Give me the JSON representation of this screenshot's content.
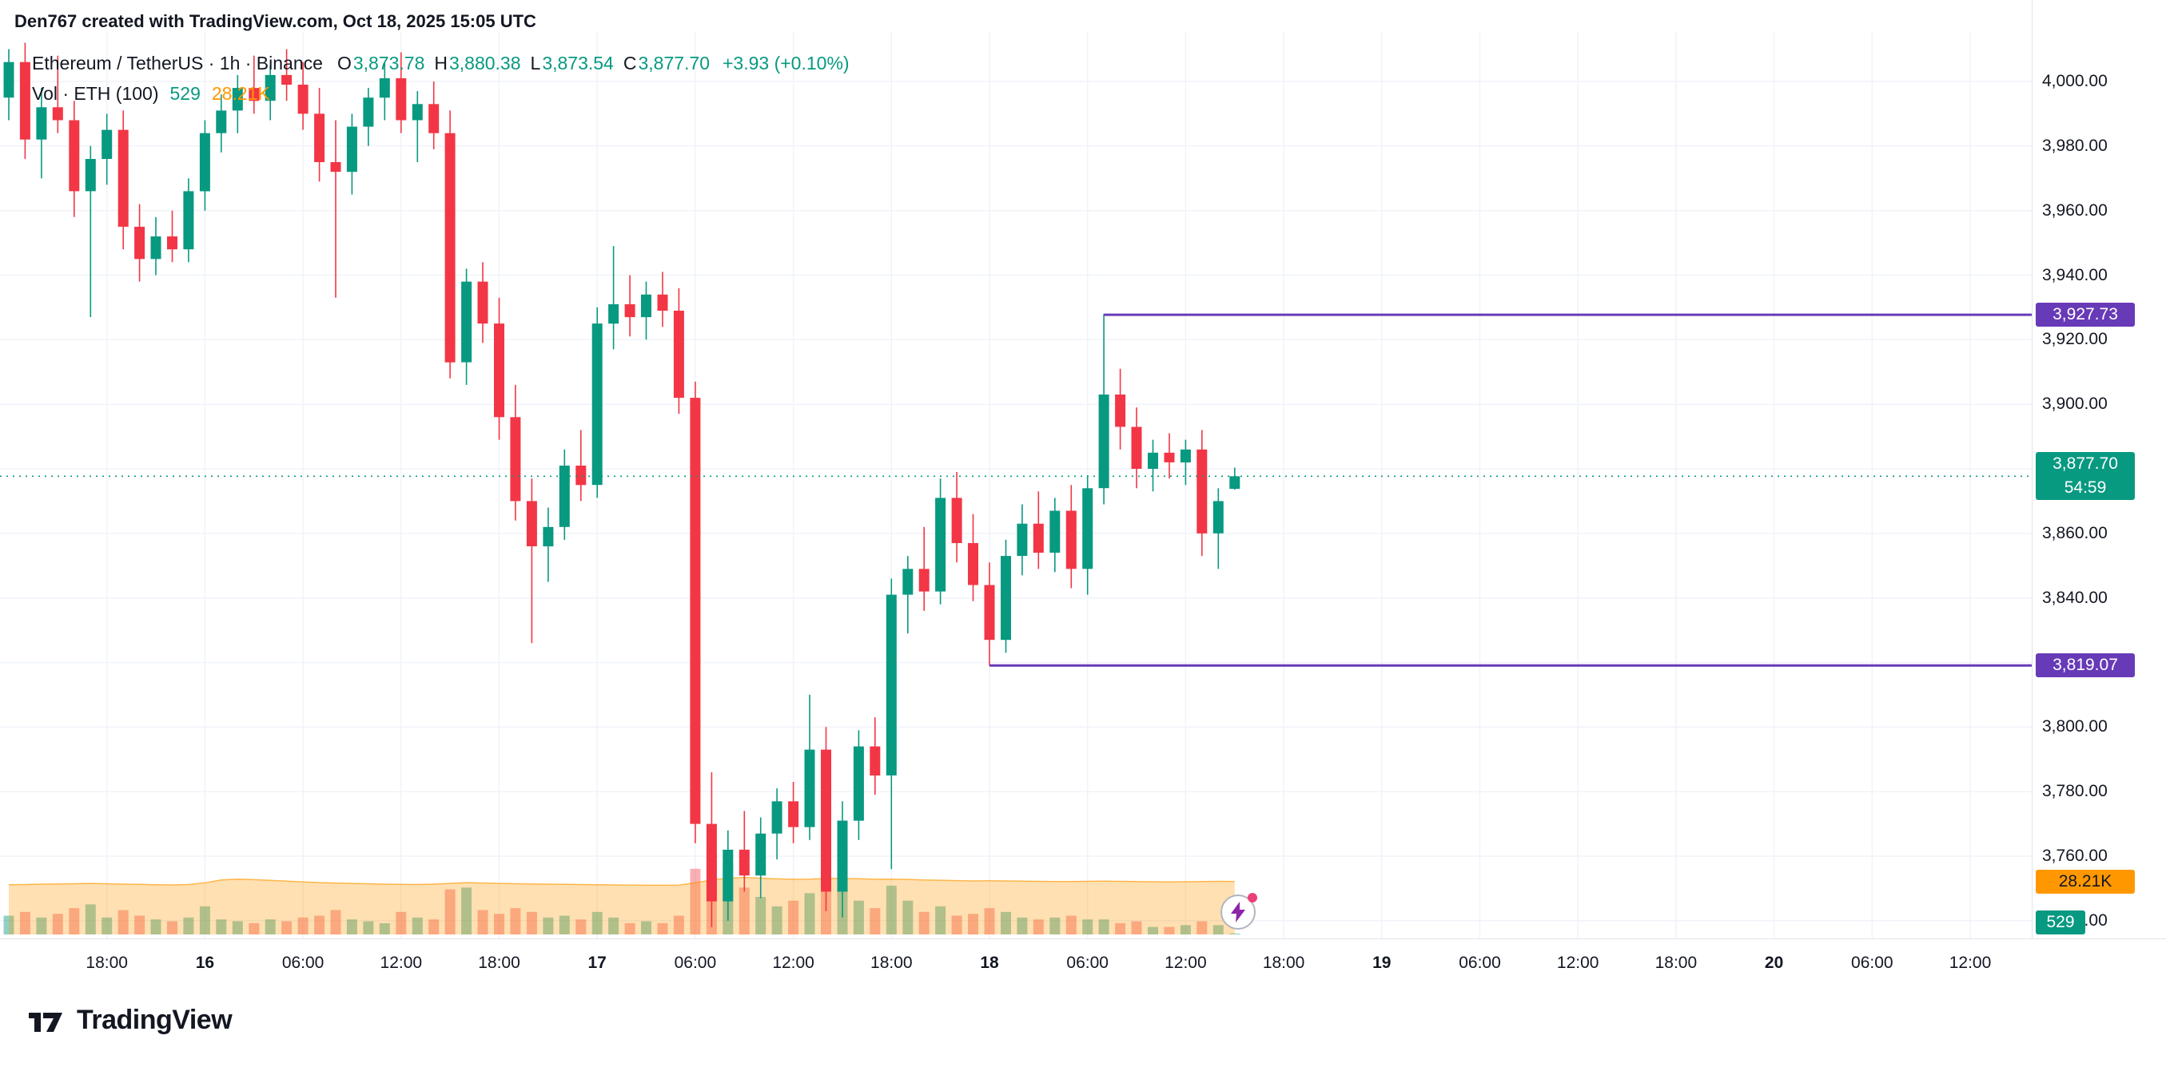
{
  "attribution": "Den767 created with TradingView.com, Oct 18, 2025 15:05 UTC",
  "legend": {
    "title": "Ethereum / TetherUS · 1h · Binance",
    "ohlc": [
      {
        "label": "O",
        "value": "3,873.78"
      },
      {
        "label": "H",
        "value": "3,880.38"
      },
      {
        "label": "L",
        "value": "3,873.54"
      },
      {
        "label": "C",
        "value": "3,877.70"
      }
    ],
    "change": "+3.93 (+0.10%)",
    "vol_title": "Vol · ETH (100)",
    "vol_value": "529",
    "vol_ma": "28.21K"
  },
  "axis": {
    "price_labels": [
      {
        "label": "4,000.00",
        "price": 4000
      },
      {
        "label": "3,980.00",
        "price": 3980
      },
      {
        "label": "3,960.00",
        "price": 3960
      },
      {
        "label": "3,940.00",
        "price": 3940
      },
      {
        "label": "3,920.00",
        "price": 3920
      },
      {
        "label": "3,900.00",
        "price": 3900
      },
      {
        "label": "3,880.00",
        "price": 3880
      },
      {
        "label": "3,860.00",
        "price": 3860
      },
      {
        "label": "3,840.00",
        "price": 3840
      },
      {
        "label": "3,820.00",
        "price": 3820
      },
      {
        "label": "3,800.00",
        "price": 3800
      },
      {
        "label": "3,780.00",
        "price": 3780
      },
      {
        "label": "3,760.00",
        "price": 3760
      },
      {
        "label": "3,740.00",
        "price": 3740
      }
    ],
    "time_labels": [
      {
        "label": "18:00",
        "i": 6,
        "bold": false
      },
      {
        "label": "16",
        "i": 12,
        "bold": true
      },
      {
        "label": "06:00",
        "i": 18,
        "bold": false
      },
      {
        "label": "12:00",
        "i": 24,
        "bold": false
      },
      {
        "label": "18:00",
        "i": 30,
        "bold": false
      },
      {
        "label": "17",
        "i": 36,
        "bold": true
      },
      {
        "label": "06:00",
        "i": 42,
        "bold": false
      },
      {
        "label": "12:00",
        "i": 48,
        "bold": false
      },
      {
        "label": "18:00",
        "i": 54,
        "bold": false
      },
      {
        "label": "18",
        "i": 60,
        "bold": true
      },
      {
        "label": "06:00",
        "i": 66,
        "bold": false
      },
      {
        "label": "12:00",
        "i": 72,
        "bold": false
      },
      {
        "label": "18:00",
        "i": 78,
        "bold": false
      },
      {
        "label": "19",
        "i": 84,
        "bold": true
      },
      {
        "label": "06:00",
        "i": 90,
        "bold": false
      },
      {
        "label": "12:00",
        "i": 96,
        "bold": false
      },
      {
        "label": "18:00",
        "i": 102,
        "bold": false
      },
      {
        "label": "20",
        "i": 108,
        "bold": true
      },
      {
        "label": "06:00",
        "i": 114,
        "bold": false
      },
      {
        "label": "12:00",
        "i": 120,
        "bold": false
      }
    ]
  },
  "badges": {
    "last_price": {
      "label": "3,877.70",
      "countdown": "54:59",
      "price": 3877.7,
      "color": "#089981"
    },
    "level_high": {
      "label": "3,927.73",
      "price": 3927.73,
      "color": "#673ab7"
    },
    "level_low": {
      "label": "3,819.07",
      "price": 3819.07,
      "color": "#673ab7"
    },
    "vol_ma": {
      "label": "28.21K",
      "value_k": 28.21,
      "color": "#ff9800"
    },
    "vol": {
      "label": "529",
      "value_k": 0.529,
      "color": "#089981"
    }
  },
  "footer": {
    "brand": "TradingView"
  },
  "chart_data": {
    "type": "candlestick",
    "title": "Ethereum / TetherUS",
    "symbol": "ETHUSDT",
    "exchange": "Binance",
    "interval": "1h",
    "start_time": "2025-10-15 12:00 UTC",
    "end_time": "2025-10-18 15:00 UTC",
    "last": {
      "o": 3873.78,
      "h": 3880.38,
      "l": 3873.54,
      "c": 3877.7,
      "change_abs": 3.93,
      "change_pct": 0.1
    },
    "ylim": [
      3736,
      4012
    ],
    "grid": true,
    "levels": [
      {
        "price": 3927.73,
        "start_i": 67
      },
      {
        "price": 3819.07,
        "start_i": 60
      }
    ],
    "volume_ma_last_k": 28.21,
    "volume_last": 529,
    "candles": [
      [
        3995,
        4010,
        3988,
        4006,
        10
      ],
      [
        4006,
        4012,
        3976,
        3982,
        12
      ],
      [
        3982,
        3998,
        3970,
        3992,
        9
      ],
      [
        3992,
        4008,
        3984,
        3988,
        11
      ],
      [
        3988,
        3994,
        3958,
        3966,
        14
      ],
      [
        3966,
        3980,
        3927,
        3976,
        16
      ],
      [
        3976,
        3990,
        3968,
        3985,
        9
      ],
      [
        3985,
        3991,
        3948,
        3955,
        13
      ],
      [
        3955,
        3962,
        3938,
        3945,
        10
      ],
      [
        3945,
        3958,
        3940,
        3952,
        8
      ],
      [
        3952,
        3960,
        3944,
        3948,
        7
      ],
      [
        3948,
        3970,
        3944,
        3966,
        9
      ],
      [
        3966,
        3988,
        3960,
        3984,
        15
      ],
      [
        3984,
        3996,
        3978,
        3991,
        8
      ],
      [
        3991,
        4002,
        3984,
        3998,
        7
      ],
      [
        3998,
        4008,
        3990,
        3994,
        6
      ],
      [
        3994,
        4005,
        3988,
        4002,
        8
      ],
      [
        4002,
        4010,
        3994,
        3999,
        7
      ],
      [
        3999,
        4006,
        3985,
        3990,
        9
      ],
      [
        3990,
        3998,
        3969,
        3975,
        10
      ],
      [
        3975,
        3988,
        3933,
        3972,
        13
      ],
      [
        3972,
        3990,
        3965,
        3986,
        8
      ],
      [
        3986,
        3998,
        3980,
        3995,
        7
      ],
      [
        3995,
        4006,
        3988,
        4001,
        6
      ],
      [
        4001,
        4009,
        3984,
        3988,
        12
      ],
      [
        3988,
        3997,
        3975,
        3993,
        9
      ],
      [
        3993,
        4000,
        3979,
        3984,
        8
      ],
      [
        3984,
        3991,
        3908,
        3913,
        24
      ],
      [
        3913,
        3942,
        3906,
        3938,
        25
      ],
      [
        3938,
        3944,
        3919,
        3925,
        13
      ],
      [
        3925,
        3933,
        3889,
        3896,
        11
      ],
      [
        3896,
        3906,
        3864,
        3870,
        14
      ],
      [
        3870,
        3877,
        3826,
        3856,
        12
      ],
      [
        3856,
        3868,
        3845,
        3862,
        9
      ],
      [
        3862,
        3886,
        3858,
        3881,
        10
      ],
      [
        3881,
        3892,
        3870,
        3875,
        8
      ],
      [
        3875,
        3930,
        3871,
        3925,
        12
      ],
      [
        3925,
        3949,
        3917,
        3931,
        9
      ],
      [
        3931,
        3940,
        3921,
        3927,
        6
      ],
      [
        3927,
        3938,
        3920,
        3934,
        7
      ],
      [
        3934,
        3941,
        3924,
        3929,
        6
      ],
      [
        3929,
        3936,
        3897,
        3902,
        10
      ],
      [
        3902,
        3907,
        3764,
        3770,
        35
      ],
      [
        3770,
        3786,
        3738,
        3746,
        43
      ],
      [
        3746,
        3768,
        3740,
        3762,
        38
      ],
      [
        3762,
        3774,
        3749,
        3754,
        25
      ],
      [
        3754,
        3772,
        3747,
        3767,
        20
      ],
      [
        3767,
        3781,
        3759,
        3777,
        15
      ],
      [
        3777,
        3783,
        3764,
        3769,
        18
      ],
      [
        3769,
        3810,
        3765,
        3793,
        22
      ],
      [
        3793,
        3800,
        3743,
        3749,
        28
      ],
      [
        3749,
        3777,
        3741,
        3771,
        24
      ],
      [
        3771,
        3799,
        3765,
        3794,
        18
      ],
      [
        3794,
        3803,
        3779,
        3785,
        14
      ],
      [
        3785,
        3846,
        3756,
        3841,
        26
      ],
      [
        3841,
        3853,
        3829,
        3849,
        18
      ],
      [
        3849,
        3862,
        3836,
        3842,
        12
      ],
      [
        3842,
        3877,
        3838,
        3871,
        15
      ],
      [
        3871,
        3879,
        3851,
        3857,
        10
      ],
      [
        3857,
        3866,
        3839,
        3844,
        11
      ],
      [
        3844,
        3851,
        3819,
        3827,
        14
      ],
      [
        3827,
        3858,
        3823,
        3853,
        12
      ],
      [
        3853,
        3869,
        3847,
        3863,
        9
      ],
      [
        3863,
        3873,
        3849,
        3854,
        8
      ],
      [
        3854,
        3871,
        3848,
        3867,
        9
      ],
      [
        3867,
        3875,
        3843,
        3849,
        10
      ],
      [
        3849,
        3878,
        3841,
        3874,
        8
      ],
      [
        3874,
        3928,
        3869,
        3903,
        8
      ],
      [
        3903,
        3911,
        3886,
        3893,
        6
      ],
      [
        3893,
        3899,
        3874,
        3880,
        7
      ],
      [
        3880,
        3889,
        3873,
        3885,
        4
      ],
      [
        3885,
        3891,
        3877,
        3882,
        4
      ],
      [
        3882,
        3889,
        3875,
        3886,
        5
      ],
      [
        3886,
        3892,
        3853,
        3860,
        7
      ],
      [
        3860,
        3874,
        3849,
        3870,
        5
      ],
      [
        3873.78,
        3880.38,
        3873.54,
        3877.7,
        0.529
      ]
    ],
    "vol_ma_series": [
      26.5,
      26.6,
      26.8,
      26.9,
      27.0,
      27.2,
      27.0,
      26.8,
      26.7,
      26.5,
      26.4,
      26.6,
      27.5,
      29.0,
      29.5,
      29.2,
      28.8,
      28.4,
      28.0,
      27.6,
      27.4,
      27.2,
      27.0,
      26.8,
      26.7,
      26.6,
      26.8,
      27.2,
      27.6,
      27.4,
      27.2,
      27.0,
      26.9,
      26.8,
      26.7,
      26.6,
      26.5,
      26.4,
      26.3,
      26.2,
      26.2,
      26.3,
      27.5,
      29.0,
      30.0,
      30.3,
      30.0,
      29.6,
      29.4,
      29.5,
      29.8,
      29.9,
      29.7,
      29.4,
      29.5,
      29.3,
      29.0,
      28.9,
      28.7,
      28.5,
      28.6,
      28.5,
      28.4,
      28.3,
      28.2,
      28.2,
      28.3,
      28.4,
      28.3,
      28.2,
      28.1,
      28.0,
      28.1,
      28.2,
      28.3,
      28.21
    ],
    "colors": {
      "up": "#089981",
      "down": "#f23645",
      "vol_up": "rgba(8,153,129,0.45)",
      "vol_down": "rgba(242,54,69,0.4)",
      "vol_ma_fill": "rgba(255,152,0,0.3)",
      "vol_ma_line": "rgba(255,152,0,0.65)",
      "level": "#673ab7",
      "grid": "#f0f3fa",
      "last_price_line": "#089981"
    }
  }
}
